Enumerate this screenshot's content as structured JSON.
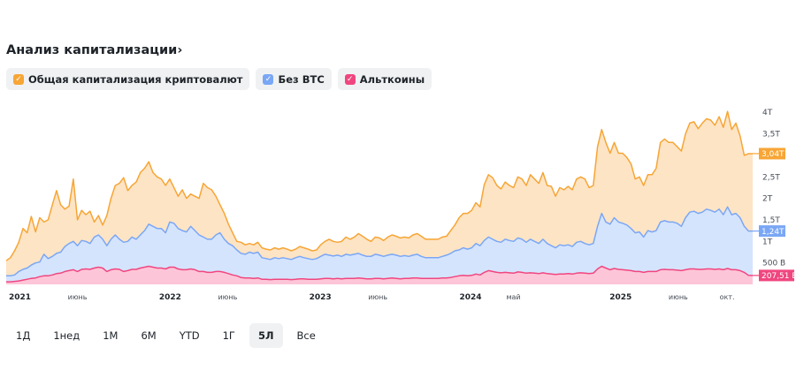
{
  "header": {
    "title": "Анализ капитализации",
    "chevron": "›",
    "chevron_icon": "chevron-right-icon"
  },
  "legend": [
    {
      "label": "Общая капитализация криптовалют",
      "color": "#f7a535",
      "icon": "check-icon",
      "check": "✓"
    },
    {
      "label": "Без BTC",
      "color": "#7aa7f5",
      "icon": "check-icon",
      "check": "✓"
    },
    {
      "label": "Альткоины",
      "color": "#f0467f",
      "icon": "check-icon",
      "check": "✓"
    }
  ],
  "ranges": {
    "items": [
      "1Д",
      "1нед",
      "1М",
      "6М",
      "YTD",
      "1Г",
      "5Л",
      "Все"
    ],
    "active": "5Л"
  },
  "chart_data": {
    "type": "area",
    "title": "Анализ капитализации",
    "y_unit": "USD",
    "ylim": [
      0,
      4.2
    ],
    "y_ticks": [
      {
        "value": 0.5,
        "label": "500 B"
      },
      {
        "value": 1.0,
        "label": "1T"
      },
      {
        "value": 1.5,
        "label": "1,5T"
      },
      {
        "value": 2.0,
        "label": "2T"
      },
      {
        "value": 2.5,
        "label": "2,5T"
      },
      {
        "value": 3.5,
        "label": "3,5T"
      },
      {
        "value": 4.0,
        "label": "4T"
      }
    ],
    "x_ticks": [
      {
        "t": 0.0,
        "label": "2021",
        "year": true
      },
      {
        "t": 0.41,
        "label": "июнь",
        "year": false
      },
      {
        "t": 1.0,
        "label": "2022",
        "year": true
      },
      {
        "t": 1.41,
        "label": "июнь",
        "year": false
      },
      {
        "t": 2.0,
        "label": "2023",
        "year": true
      },
      {
        "t": 2.41,
        "label": "июнь",
        "year": false
      },
      {
        "t": 3.0,
        "label": "2024",
        "year": true
      },
      {
        "t": 3.33,
        "label": "май",
        "year": false
      },
      {
        "t": 4.0,
        "label": "2025",
        "year": true
      },
      {
        "t": 4.41,
        "label": "июнь",
        "year": false
      },
      {
        "t": 4.75,
        "label": "окт.",
        "year": false
      }
    ],
    "x_range_years": [
      0,
      4.97
    ],
    "series": [
      {
        "name": "Общая капитализация криптовалют",
        "color": "#f7a535",
        "fill": "#fde4c5",
        "last_label": "3,04T",
        "values": [
          0.55,
          0.62,
          0.78,
          0.98,
          1.3,
          1.2,
          1.58,
          1.22,
          1.55,
          1.45,
          1.5,
          1.85,
          2.18,
          1.85,
          1.75,
          1.82,
          2.45,
          1.5,
          1.72,
          1.62,
          1.7,
          1.45,
          1.6,
          1.38,
          1.6,
          2.0,
          2.3,
          2.35,
          2.48,
          2.18,
          2.3,
          2.38,
          2.6,
          2.7,
          2.85,
          2.6,
          2.5,
          2.45,
          2.3,
          2.45,
          2.25,
          2.05,
          2.2,
          2.0,
          2.1,
          2.05,
          2.0,
          2.35,
          2.25,
          2.2,
          2.05,
          1.85,
          1.65,
          1.4,
          1.2,
          1.0,
          0.98,
          0.92,
          0.95,
          0.92,
          0.98,
          0.85,
          0.82,
          0.8,
          0.85,
          0.82,
          0.85,
          0.82,
          0.78,
          0.82,
          0.88,
          0.85,
          0.82,
          0.78,
          0.8,
          0.92,
          1.0,
          1.05,
          1.0,
          0.98,
          1.0,
          1.1,
          1.05,
          1.1,
          1.18,
          1.12,
          1.05,
          1.0,
          1.1,
          1.08,
          1.02,
          1.1,
          1.15,
          1.12,
          1.08,
          1.1,
          1.08,
          1.15,
          1.18,
          1.12,
          1.05,
          1.05,
          1.05,
          1.05,
          1.1,
          1.12,
          1.25,
          1.38,
          1.55,
          1.65,
          1.65,
          1.72,
          1.9,
          1.8,
          2.32,
          2.55,
          2.48,
          2.3,
          2.22,
          2.38,
          2.3,
          2.25,
          2.5,
          2.45,
          2.3,
          2.55,
          2.45,
          2.35,
          2.6,
          2.3,
          2.28,
          2.05,
          2.25,
          2.2,
          2.28,
          2.2,
          2.45,
          2.5,
          2.45,
          2.25,
          2.3,
          3.2,
          3.6,
          3.3,
          3.05,
          3.3,
          3.05,
          3.05,
          2.95,
          2.8,
          2.45,
          2.5,
          2.3,
          2.55,
          2.55,
          2.7,
          3.3,
          3.38,
          3.3,
          3.3,
          3.2,
          3.1,
          3.5,
          3.75,
          3.78,
          3.62,
          3.75,
          3.85,
          3.82,
          3.7,
          3.9,
          3.65,
          4.02,
          3.6,
          3.75,
          3.45,
          3.0,
          3.04,
          3.04
        ]
      },
      {
        "name": "Без BTC",
        "color": "#7aa7f5",
        "fill": "#d5e4fd",
        "last_label": "1,24T",
        "values": [
          0.2,
          0.2,
          0.22,
          0.3,
          0.35,
          0.38,
          0.45,
          0.5,
          0.52,
          0.7,
          0.6,
          0.65,
          0.72,
          0.75,
          0.88,
          0.95,
          1.0,
          0.9,
          1.02,
          1.0,
          0.95,
          1.1,
          1.15,
          1.05,
          0.9,
          1.05,
          1.15,
          1.05,
          0.98,
          1.0,
          1.1,
          1.05,
          1.15,
          1.25,
          1.4,
          1.35,
          1.3,
          1.3,
          1.2,
          1.45,
          1.42,
          1.3,
          1.25,
          1.22,
          1.35,
          1.25,
          1.15,
          1.1,
          1.05,
          1.05,
          1.15,
          1.2,
          1.05,
          0.95,
          0.9,
          0.8,
          0.72,
          0.7,
          0.75,
          0.72,
          0.75,
          0.62,
          0.6,
          0.58,
          0.62,
          0.6,
          0.62,
          0.6,
          0.58,
          0.62,
          0.65,
          0.62,
          0.6,
          0.58,
          0.6,
          0.65,
          0.7,
          0.68,
          0.66,
          0.68,
          0.65,
          0.7,
          0.68,
          0.7,
          0.72,
          0.68,
          0.65,
          0.65,
          0.7,
          0.68,
          0.65,
          0.68,
          0.7,
          0.68,
          0.65,
          0.67,
          0.65,
          0.68,
          0.7,
          0.65,
          0.62,
          0.62,
          0.62,
          0.62,
          0.65,
          0.68,
          0.72,
          0.78,
          0.8,
          0.85,
          0.82,
          0.85,
          0.95,
          0.9,
          1.02,
          1.1,
          1.05,
          1.0,
          0.98,
          1.05,
          1.02,
          1.0,
          1.08,
          1.05,
          0.98,
          1.05,
          1.0,
          0.95,
          1.05,
          0.95,
          0.9,
          0.85,
          0.92,
          0.9,
          0.92,
          0.88,
          0.98,
          1.0,
          0.95,
          0.92,
          0.95,
          1.35,
          1.65,
          1.45,
          1.4,
          1.55,
          1.45,
          1.42,
          1.38,
          1.3,
          1.2,
          1.22,
          1.1,
          1.25,
          1.22,
          1.25,
          1.45,
          1.48,
          1.45,
          1.45,
          1.42,
          1.35,
          1.55,
          1.68,
          1.7,
          1.65,
          1.68,
          1.75,
          1.72,
          1.68,
          1.75,
          1.62,
          1.8,
          1.62,
          1.65,
          1.55,
          1.35,
          1.24,
          1.24
        ]
      },
      {
        "name": "Альткоины",
        "color": "#f0467f",
        "fill": "#fdc5d8",
        "last_label": "207,51 B",
        "values": [
          0.06,
          0.06,
          0.07,
          0.08,
          0.1,
          0.12,
          0.14,
          0.15,
          0.18,
          0.2,
          0.2,
          0.22,
          0.25,
          0.26,
          0.3,
          0.32,
          0.34,
          0.3,
          0.35,
          0.36,
          0.35,
          0.38,
          0.4,
          0.38,
          0.3,
          0.34,
          0.36,
          0.35,
          0.3,
          0.32,
          0.35,
          0.35,
          0.38,
          0.4,
          0.42,
          0.4,
          0.38,
          0.38,
          0.36,
          0.4,
          0.4,
          0.36,
          0.34,
          0.34,
          0.36,
          0.34,
          0.3,
          0.3,
          0.28,
          0.28,
          0.3,
          0.3,
          0.28,
          0.25,
          0.22,
          0.2,
          0.16,
          0.15,
          0.15,
          0.14,
          0.15,
          0.12,
          0.12,
          0.11,
          0.12,
          0.12,
          0.12,
          0.12,
          0.11,
          0.12,
          0.13,
          0.13,
          0.12,
          0.12,
          0.12,
          0.13,
          0.14,
          0.14,
          0.13,
          0.14,
          0.13,
          0.14,
          0.14,
          0.14,
          0.15,
          0.14,
          0.13,
          0.13,
          0.14,
          0.14,
          0.13,
          0.14,
          0.15,
          0.14,
          0.13,
          0.14,
          0.14,
          0.15,
          0.15,
          0.14,
          0.14,
          0.14,
          0.14,
          0.14,
          0.15,
          0.15,
          0.16,
          0.18,
          0.2,
          0.21,
          0.2,
          0.21,
          0.24,
          0.22,
          0.28,
          0.32,
          0.3,
          0.28,
          0.27,
          0.28,
          0.27,
          0.26,
          0.29,
          0.28,
          0.26,
          0.27,
          0.26,
          0.25,
          0.27,
          0.25,
          0.24,
          0.23,
          0.24,
          0.24,
          0.25,
          0.24,
          0.26,
          0.27,
          0.26,
          0.25,
          0.26,
          0.36,
          0.42,
          0.38,
          0.34,
          0.37,
          0.35,
          0.34,
          0.33,
          0.32,
          0.3,
          0.3,
          0.28,
          0.3,
          0.3,
          0.3,
          0.34,
          0.35,
          0.34,
          0.34,
          0.33,
          0.32,
          0.34,
          0.36,
          0.36,
          0.35,
          0.35,
          0.36,
          0.36,
          0.35,
          0.36,
          0.34,
          0.37,
          0.34,
          0.34,
          0.32,
          0.28,
          0.21,
          0.2075
        ]
      }
    ]
  }
}
